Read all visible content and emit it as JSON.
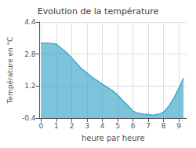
{
  "chart_data": {
    "type": "area",
    "title": "Evolution de la température",
    "xlabel": "heure par heure",
    "ylabel": "Température en °C",
    "color": "#44aacc",
    "grid": true,
    "xlim": [
      -0.1,
      9.5
    ],
    "ylim": [
      -0.4,
      4.4
    ],
    "xticks": [
      0,
      1,
      2,
      3,
      4,
      5,
      6,
      7,
      8,
      9
    ],
    "yticks": [
      -0.4,
      1.2,
      2.8,
      4.4
    ],
    "x": [
      0,
      0.3,
      0.7,
      1.0,
      1.3,
      1.7,
      2.0,
      2.3,
      2.6,
      3.0,
      3.3,
      3.7,
      4.0,
      4.3,
      4.7,
      5.0,
      5.3,
      5.7,
      6.0,
      6.3,
      6.7,
      7.0,
      7.3,
      7.7,
      8.0,
      8.3,
      8.7,
      9.0,
      9.3
    ],
    "values": [
      3.35,
      3.35,
      3.33,
      3.3,
      3.1,
      2.85,
      2.6,
      2.35,
      2.1,
      1.85,
      1.65,
      1.45,
      1.3,
      1.15,
      0.95,
      0.75,
      0.5,
      0.2,
      -0.05,
      -0.15,
      -0.2,
      -0.22,
      -0.25,
      -0.2,
      -0.1,
      0.15,
      0.65,
      1.1,
      1.6
    ]
  }
}
